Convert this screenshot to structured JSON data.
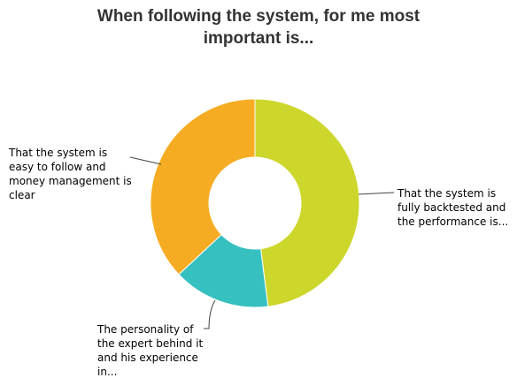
{
  "chart_data": {
    "type": "donut",
    "title": "When following the system, for me most important is...",
    "categories": [
      "That the system is fully backtested and the performance is...",
      "The personality of the expert behind it and his experience in...",
      "That the system is easy to follow and money management is clear"
    ],
    "values": [
      48,
      15,
      37
    ],
    "colors": [
      "#cdd62b",
      "#37c0c0",
      "#f6ac22"
    ]
  }
}
